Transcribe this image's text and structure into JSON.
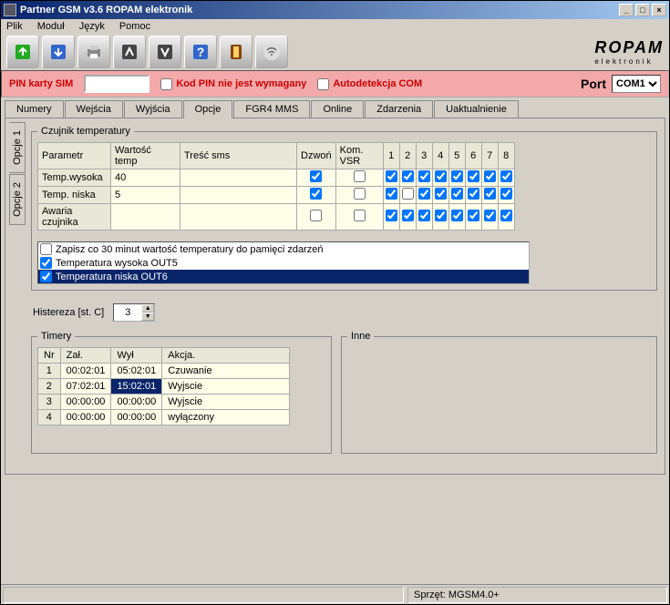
{
  "window": {
    "title": "Partner GSM v3.6 ROPAM elektronik"
  },
  "menu": {
    "items": [
      "Plik",
      "Moduł",
      "Język",
      "Pomoc"
    ]
  },
  "logo": {
    "text": "ROPAM",
    "sub": "elektronik"
  },
  "pinkbar": {
    "pin_label": "PIN karty SIM",
    "pin_value": "",
    "req_label": "Kod PIN nie jest wymagany",
    "req_checked": false,
    "autodetect_label": "Autodetekcja COM",
    "autodetect_checked": false,
    "port_label": "Port",
    "port_value": "COM1"
  },
  "tabs": [
    "Numery",
    "Wejścia",
    "Wyjścia",
    "Opcje",
    "FGR4 MMS",
    "Online",
    "Zdarzenia",
    "Uaktualnienie"
  ],
  "active_tab": "Opcje",
  "vtabs": [
    "Opcje 1",
    "Opcje 2"
  ],
  "active_vtab": "Opcje 1",
  "temp_fieldset": "Czujnik temperatury",
  "temp_cols": [
    "Parametr",
    "Wartość temp",
    "Treść sms",
    "Dzwoń",
    "Kom. VSR",
    "1",
    "2",
    "3",
    "4",
    "5",
    "6",
    "7",
    "8"
  ],
  "temp_rows": [
    {
      "param": "Temp.wysoka",
      "val": "40",
      "sms": "",
      "dzwon": true,
      "vsr": false,
      "n": [
        true,
        true,
        true,
        true,
        true,
        true,
        true,
        true
      ]
    },
    {
      "param": "Temp. niska",
      "val": "5",
      "sms": "",
      "dzwon": true,
      "vsr": false,
      "n": [
        true,
        false,
        true,
        true,
        true,
        true,
        true,
        true
      ]
    },
    {
      "param": "Awaria czujnika",
      "val": "",
      "sms": "",
      "dzwon": false,
      "vsr": false,
      "n": [
        true,
        true,
        true,
        true,
        true,
        true,
        true,
        true
      ]
    }
  ],
  "checklist": [
    {
      "label": "Zapisz co 30 minut wartość temperatury do pamięci zdarzeń",
      "checked": false,
      "sel": false
    },
    {
      "label": "Temperatura wysoka OUT5",
      "checked": true,
      "sel": false
    },
    {
      "label": "Temperatura niska OUT6",
      "checked": true,
      "sel": true
    }
  ],
  "hist": {
    "label": "Histereza [st. C]",
    "value": "3"
  },
  "timers": {
    "legend": "Timery",
    "cols": [
      "Nr",
      "Zał.",
      "Wył",
      "Akcja."
    ],
    "rows": [
      {
        "nr": "1",
        "zal": "00:02:01",
        "wyl": "05:02:01",
        "akcja": "Czuwanie",
        "sel": null
      },
      {
        "nr": "2",
        "zal": "07:02:01",
        "wyl": "15:02:01",
        "akcja": "Wyjscie",
        "sel": "wyl"
      },
      {
        "nr": "3",
        "zal": "00:00:00",
        "wyl": "00:00:00",
        "akcja": "Wyjscie",
        "sel": null
      },
      {
        "nr": "4",
        "zal": "00:00:00",
        "wyl": "00:00:00",
        "akcja": "wyłączony",
        "sel": null
      }
    ]
  },
  "inne": {
    "legend": "Inne"
  },
  "status": {
    "left": "",
    "right": "Sprzęt: MGSM4.0+"
  }
}
